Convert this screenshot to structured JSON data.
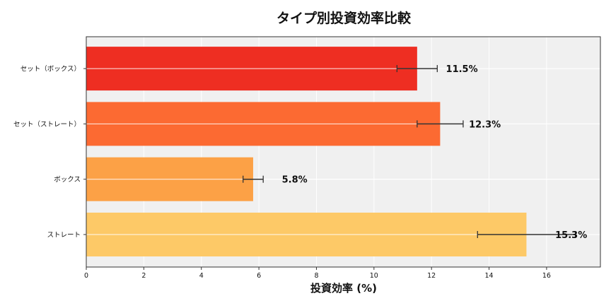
{
  "chart_data": {
    "type": "bar",
    "orientation": "horizontal",
    "title": "タイプ別投資効率比較",
    "xlabel": "投資効率 (%)",
    "ylabel": "",
    "categories": [
      "ストレート",
      "ボックス",
      "セット（ストレート）",
      "セット（ボックス）"
    ],
    "values": [
      15.3,
      5.8,
      12.3,
      11.5
    ],
    "errors": [
      1.7,
      0.35,
      0.8,
      0.7
    ],
    "data_labels": [
      "15.3%",
      "5.8%",
      "12.3%",
      "11.5%"
    ],
    "colors": [
      "#fdc967",
      "#fca146",
      "#fc6a32",
      "#ee2e22"
    ],
    "xlim": [
      0,
      17.87
    ],
    "xticks": [
      0,
      2,
      4,
      6,
      8,
      10,
      12,
      14,
      16
    ],
    "grid": true,
    "background": "#f0f0f0"
  }
}
